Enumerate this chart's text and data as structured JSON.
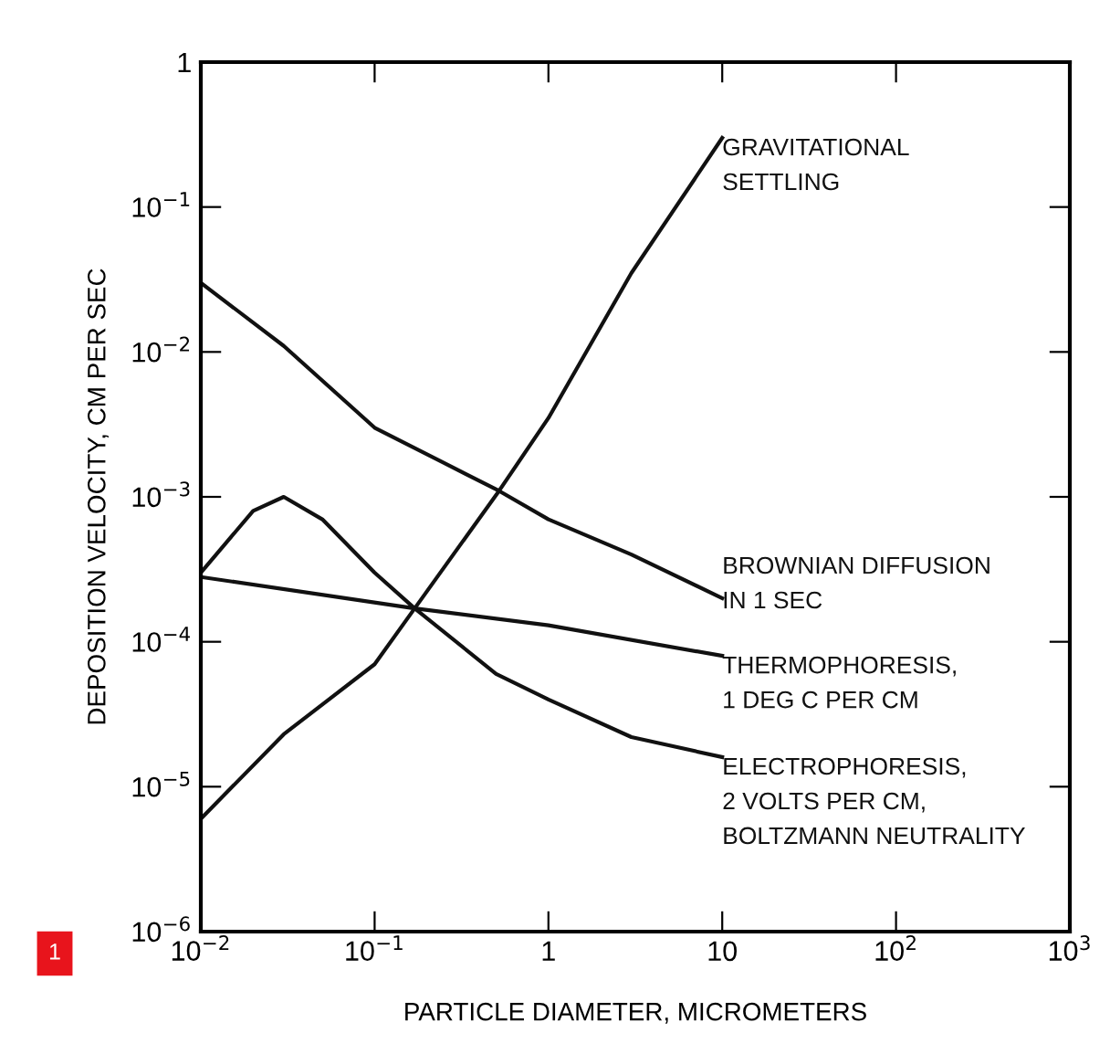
{
  "chart_data": {
    "type": "line",
    "xlabel": "PARTICLE DIAMETER, MICROMETERS",
    "ylabel": "DEPOSITION VELOCITY, CM PER SEC",
    "log": "xy",
    "xlim": [
      0.01,
      1000
    ],
    "ylim": [
      1e-06,
      1
    ],
    "xticks": [
      {
        "value": 0.01,
        "label": "10$^{−2}$"
      },
      {
        "value": 0.1,
        "label": "10$^{−1}$"
      },
      1,
      10,
      {
        "value": 100,
        "label": "10$^{2}$"
      },
      {
        "value": 1000,
        "label": "10$^{3}$"
      }
    ],
    "yticks": [
      {
        "value": 1e-06,
        "label": "10$^{−6}$"
      },
      {
        "value": 1e-05,
        "label": "10$^{−5}$"
      },
      {
        "value": 0.0001,
        "label": "10$^{−4}$"
      },
      {
        "value": 0.001,
        "label": "10$^{−3}$"
      },
      {
        "value": 0.01,
        "label": "10$^{−2}$"
      },
      {
        "value": 0.1,
        "label": "10$^{−1}$"
      },
      1
    ],
    "grid": false,
    "legend": false,
    "marker": "none",
    "line_style": "solid",
    "series": [
      {
        "name": "GRAVITATIONAL\nSETTLING",
        "color": "#111111",
        "x": [
          0.01,
          0.03,
          0.1,
          0.17,
          0.52,
          1,
          3,
          10
        ],
        "values": [
          6e-06,
          2.3e-05,
          7e-05,
          0.00017,
          0.0011,
          0.0035,
          0.035,
          0.3
        ]
      },
      {
        "name": "BROWNIAN DIFFUSION\nIN 1 SEC",
        "color": "#111111",
        "x": [
          0.01,
          0.03,
          0.1,
          0.52,
          1,
          3,
          10
        ],
        "values": [
          0.03,
          0.011,
          0.003,
          0.0011,
          0.0007,
          0.0004,
          0.0002
        ]
      },
      {
        "name": "THERMOPHORESIS,\n1 DEG C PER CM",
        "color": "#111111",
        "x": [
          0.01,
          0.17,
          1,
          10
        ],
        "values": [
          0.00028,
          0.00017,
          0.00013,
          8e-05
        ]
      },
      {
        "name": "ELECTROPHORESIS,\n2 VOLTS PER CM,\nBOLTZMANN NEUTRALITY",
        "color": "#111111",
        "x": [
          0.01,
          0.02,
          0.03,
          0.05,
          0.1,
          0.17,
          0.5,
          1,
          3,
          10
        ],
        "values": [
          0.0003,
          0.0008,
          0.001,
          0.0007,
          0.0003,
          0.00017,
          6e-05,
          4e-05,
          2.2e-05,
          1.6e-05
        ]
      }
    ],
    "annotations": [
      "1"
    ]
  }
}
